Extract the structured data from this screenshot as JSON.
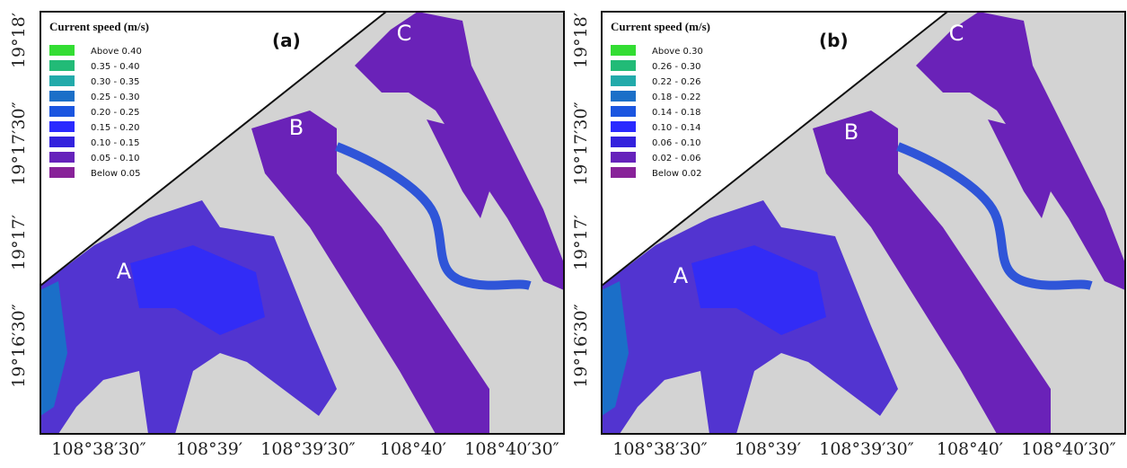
{
  "panels": [
    {
      "label": "(a)",
      "legend": {
        "title": "Current speed (m/s)",
        "items": [
          {
            "label": "Above 0.40",
            "color": "#33dd33"
          },
          {
            "label": "0.35 - 0.40",
            "color": "#22bb77"
          },
          {
            "label": "0.30 - 0.35",
            "color": "#22aaaa"
          },
          {
            "label": "0.25 - 0.30",
            "color": "#1b6fc8"
          },
          {
            "label": "0.20 - 0.25",
            "color": "#1a55e0"
          },
          {
            "label": "0.15 - 0.20",
            "color": "#2a2aff"
          },
          {
            "label": "0.10 - 0.15",
            "color": "#3322dd"
          },
          {
            "label": "0.05 - 0.10",
            "color": "#6622bb"
          },
          {
            "label": "Below 0.05",
            "color": "#882299"
          }
        ]
      },
      "yticks": [
        "19°18′",
        "19°17′30″",
        "19°17′",
        "19°16′30″"
      ],
      "xticks": [
        "108°38′30″",
        "108°39′",
        "108°39′30″",
        "108°40′",
        "108°40′30″"
      ],
      "regions": [
        "A",
        "B",
        "C"
      ]
    },
    {
      "label": "(b)",
      "legend": {
        "title": "Current speed (m/s)",
        "items": [
          {
            "label": "Above 0.30",
            "color": "#33dd33"
          },
          {
            "label": "0.26 - 0.30",
            "color": "#22bb77"
          },
          {
            "label": "0.22 - 0.26",
            "color": "#22aaaa"
          },
          {
            "label": "0.18 - 0.22",
            "color": "#1b6fc8"
          },
          {
            "label": "0.14 - 0.18",
            "color": "#1a55e0"
          },
          {
            "label": "0.10 - 0.14",
            "color": "#2a2aff"
          },
          {
            "label": "0.06 - 0.10",
            "color": "#3322dd"
          },
          {
            "label": "0.02 - 0.06",
            "color": "#6622bb"
          },
          {
            "label": "Below 0.02",
            "color": "#882299"
          }
        ]
      },
      "yticks": [
        "19°18′",
        "19°17′30″",
        "19°17′",
        "19°16′30″"
      ],
      "xticks": [
        "108°38′30″",
        "108°39′",
        "108°39′30″",
        "108°40′",
        "108°40′30″"
      ],
      "regions": [
        "A",
        "B",
        "C"
      ]
    }
  ]
}
